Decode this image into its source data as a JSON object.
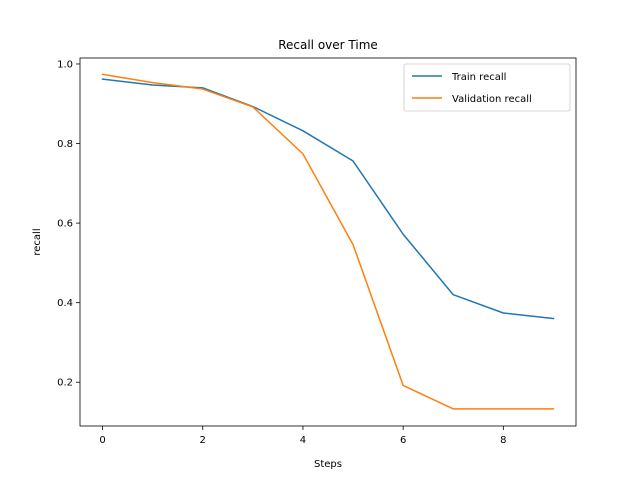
{
  "chart_data": {
    "type": "line",
    "title": "Recall over Time",
    "xlabel": "Steps",
    "ylabel": "recall",
    "xlim": [
      -0.45,
      9.45
    ],
    "ylim": [
      0.09,
      1.015
    ],
    "xticks": [
      0,
      2,
      4,
      6,
      8
    ],
    "yticks": [
      0.2,
      0.4,
      0.6,
      0.8,
      1.0
    ],
    "grid": false,
    "legend_position": "top-right",
    "x": [
      0,
      1,
      2,
      3,
      4,
      5,
      6,
      7,
      8,
      9
    ],
    "series": [
      {
        "name": "Train recall",
        "color": "#1f77b4",
        "values": [
          0.962,
          0.947,
          0.94,
          0.893,
          0.832,
          0.756,
          0.572,
          0.42,
          0.374,
          0.36
        ]
      },
      {
        "name": "Validation recall",
        "color": "#ff7f0e",
        "values": [
          0.974,
          0.953,
          0.937,
          0.892,
          0.774,
          0.546,
          0.192,
          0.133,
          0.133,
          0.133
        ]
      }
    ]
  }
}
